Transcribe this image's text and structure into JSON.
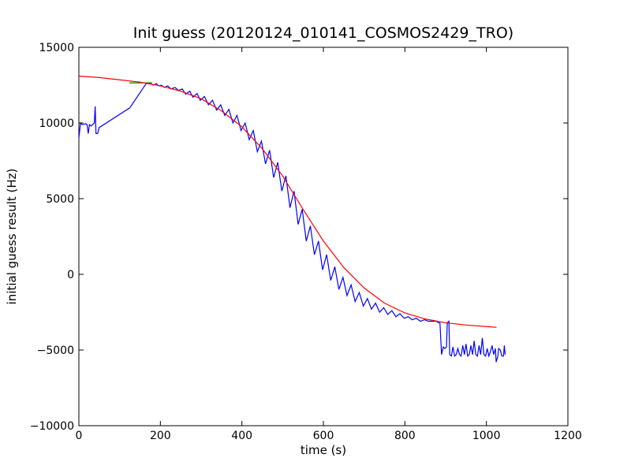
{
  "chart_data": {
    "type": "line",
    "title": "Init guess (20120124_010141_COSMOS2429_TRO)",
    "xlabel": "time (s)",
    "ylabel": "initial guess result (Hz)",
    "xlim": [
      0,
      1200
    ],
    "ylim": [
      -10000,
      15000
    ],
    "xticks": [
      0,
      200,
      400,
      600,
      800,
      1000,
      1200
    ],
    "xtick_labels": [
      "0",
      "200",
      "400",
      "600",
      "800",
      "1000",
      "1200"
    ],
    "yticks": [
      -10000,
      -5000,
      0,
      5000,
      10000,
      15000
    ],
    "ytick_labels": [
      "−10000",
      "−5000",
      "0",
      "5000",
      "10000",
      "15000"
    ],
    "grid": false,
    "series": [
      {
        "color": "#0000ff",
        "points": [
          [
            0,
            9000
          ],
          [
            4,
            10000
          ],
          [
            8,
            9900
          ],
          [
            12,
            9900
          ],
          [
            16,
            9950
          ],
          [
            20,
            9900
          ],
          [
            23,
            9300
          ],
          [
            26,
            9900
          ],
          [
            30,
            9800
          ],
          [
            34,
            9900
          ],
          [
            38,
            10000
          ],
          [
            40,
            11100
          ],
          [
            42,
            9300
          ],
          [
            46,
            9300
          ],
          [
            50,
            9700
          ],
          [
            125,
            11000
          ],
          [
            165,
            12600
          ],
          [
            175,
            12600
          ],
          [
            183,
            12500
          ],
          [
            190,
            12600
          ],
          [
            196,
            12450
          ],
          [
            202,
            12500
          ],
          [
            210,
            12350
          ],
          [
            218,
            12450
          ],
          [
            226,
            12250
          ],
          [
            236,
            12350
          ],
          [
            244,
            12150
          ],
          [
            254,
            12250
          ],
          [
            262,
            11900
          ],
          [
            272,
            12100
          ],
          [
            280,
            11700
          ],
          [
            290,
            11950
          ],
          [
            298,
            11500
          ],
          [
            308,
            11750
          ],
          [
            318,
            11200
          ],
          [
            328,
            11500
          ],
          [
            338,
            10850
          ],
          [
            348,
            11200
          ],
          [
            358,
            10500
          ],
          [
            368,
            10900
          ],
          [
            378,
            10000
          ],
          [
            388,
            10500
          ],
          [
            398,
            9500
          ],
          [
            408,
            10000
          ],
          [
            418,
            8900
          ],
          [
            428,
            9500
          ],
          [
            438,
            8100
          ],
          [
            448,
            8800
          ],
          [
            458,
            7300
          ],
          [
            468,
            8200
          ],
          [
            478,
            6400
          ],
          [
            488,
            7400
          ],
          [
            498,
            5500
          ],
          [
            508,
            6500
          ],
          [
            518,
            4400
          ],
          [
            528,
            5500
          ],
          [
            538,
            3300
          ],
          [
            548,
            4300
          ],
          [
            558,
            2200
          ],
          [
            568,
            3200
          ],
          [
            578,
            1300
          ],
          [
            588,
            2200
          ],
          [
            598,
            300
          ],
          [
            608,
            1300
          ],
          [
            618,
            -400
          ],
          [
            628,
            500
          ],
          [
            638,
            -1000
          ],
          [
            648,
            -200
          ],
          [
            658,
            -1400
          ],
          [
            668,
            -700
          ],
          [
            678,
            -1800
          ],
          [
            688,
            -1200
          ],
          [
            698,
            -2100
          ],
          [
            708,
            -1600
          ],
          [
            718,
            -2300
          ],
          [
            728,
            -1900
          ],
          [
            738,
            -2500
          ],
          [
            748,
            -2200
          ],
          [
            758,
            -2650
          ],
          [
            768,
            -2400
          ],
          [
            778,
            -2800
          ],
          [
            788,
            -2600
          ],
          [
            798,
            -2900
          ],
          [
            808,
            -2800
          ],
          [
            818,
            -3000
          ],
          [
            828,
            -2900
          ],
          [
            838,
            -3100
          ],
          [
            848,
            -3000
          ],
          [
            858,
            -3100
          ],
          [
            868,
            -3100
          ],
          [
            878,
            -3100
          ],
          [
            882,
            -3200
          ],
          [
            886,
            -3200
          ],
          [
            890,
            -5300
          ],
          [
            894,
            -4800
          ],
          [
            898,
            -4900
          ],
          [
            902,
            -4800
          ],
          [
            904,
            -3200
          ],
          [
            908,
            -3100
          ],
          [
            910,
            -5300
          ],
          [
            914,
            -5400
          ],
          [
            918,
            -4800
          ],
          [
            922,
            -5400
          ],
          [
            926,
            -5300
          ],
          [
            930,
            -4900
          ],
          [
            934,
            -5300
          ],
          [
            938,
            -5400
          ],
          [
            942,
            -4700
          ],
          [
            946,
            -5300
          ],
          [
            950,
            -4600
          ],
          [
            954,
            -5400
          ],
          [
            958,
            -5300
          ],
          [
            962,
            -4700
          ],
          [
            966,
            -5300
          ],
          [
            970,
            -4400
          ],
          [
            974,
            -5300
          ],
          [
            978,
            -5400
          ],
          [
            982,
            -4700
          ],
          [
            986,
            -5300
          ],
          [
            990,
            -4200
          ],
          [
            994,
            -5300
          ],
          [
            998,
            -5400
          ],
          [
            1002,
            -4900
          ],
          [
            1006,
            -5400
          ],
          [
            1010,
            -5100
          ],
          [
            1014,
            -4700
          ],
          [
            1018,
            -5300
          ],
          [
            1022,
            -4900
          ],
          [
            1024,
            -5800
          ],
          [
            1028,
            -5400
          ],
          [
            1030,
            -4900
          ],
          [
            1034,
            -5000
          ],
          [
            1038,
            -5400
          ],
          [
            1042,
            -5400
          ],
          [
            1044,
            -4700
          ],
          [
            1046,
            -5300
          ]
        ]
      },
      {
        "color": "#008000",
        "points": [
          [
            124,
            12650
          ],
          [
            180,
            12650
          ]
        ]
      },
      {
        "color": "#ff0000",
        "points": [
          [
            0,
            13100
          ],
          [
            50,
            13000
          ],
          [
            100,
            12850
          ],
          [
            150,
            12700
          ],
          [
            200,
            12450
          ],
          [
            250,
            12100
          ],
          [
            300,
            11600
          ],
          [
            350,
            10800
          ],
          [
            400,
            9750
          ],
          [
            450,
            8300
          ],
          [
            500,
            6500
          ],
          [
            550,
            4300
          ],
          [
            600,
            2200
          ],
          [
            650,
            450
          ],
          [
            700,
            -900
          ],
          [
            750,
            -1900
          ],
          [
            800,
            -2550
          ],
          [
            850,
            -2950
          ],
          [
            900,
            -3200
          ],
          [
            950,
            -3350
          ],
          [
            1000,
            -3450
          ],
          [
            1025,
            -3500
          ]
        ]
      }
    ]
  }
}
